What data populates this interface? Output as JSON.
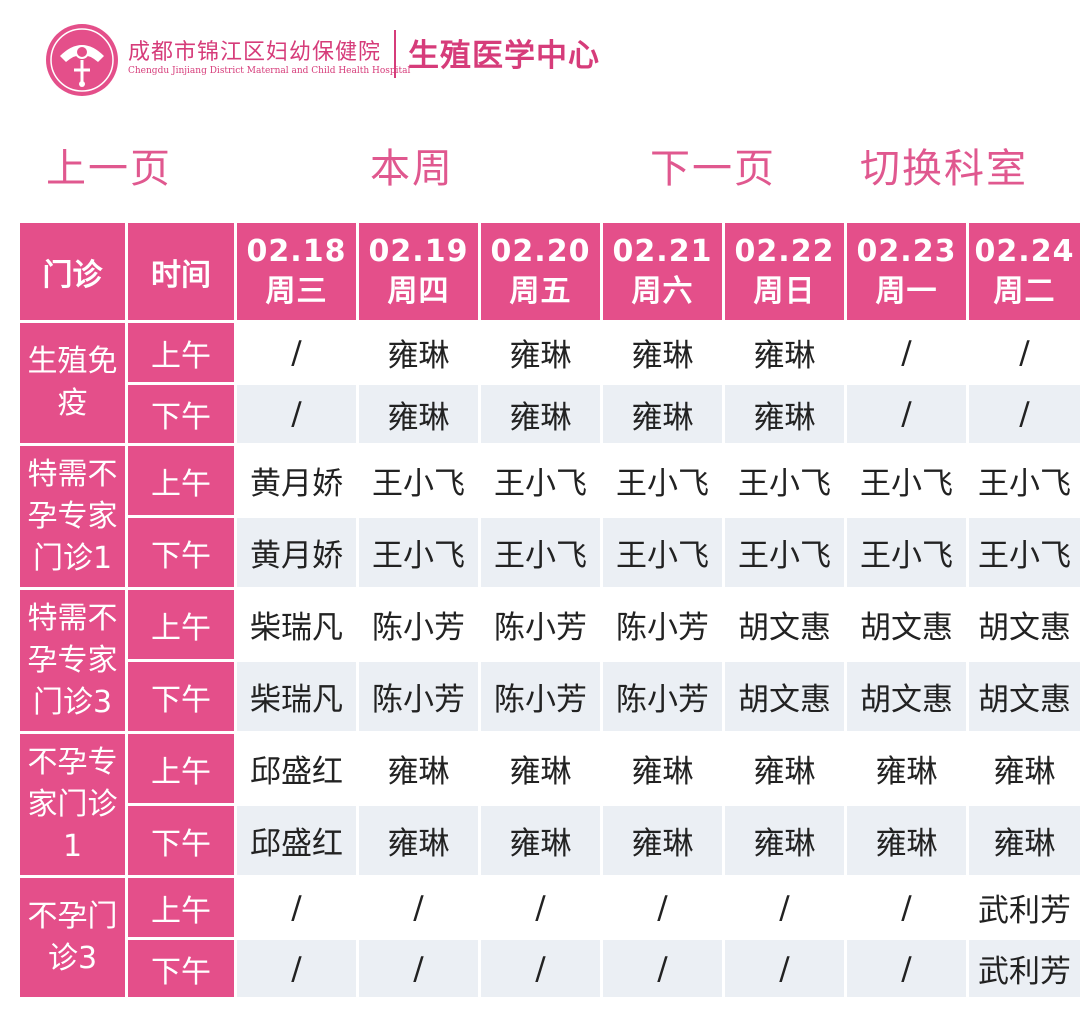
{
  "header": {
    "hospital_cn": "成都市锦江区妇幼保健院",
    "hospital_en": "Chengdu Jinjiang District Maternal and Child Health Hospital",
    "center": "生殖医学中心",
    "logo_icon": "hospital-logo-icon",
    "accent_color": "#e44f8a"
  },
  "nav": {
    "prev": "上一页",
    "week": "本周",
    "next": "下一页",
    "switch_dept": "切换科室"
  },
  "table": {
    "col_dept": "门诊",
    "col_time": "时间",
    "days": [
      {
        "date": "02.18",
        "weekday": "周三"
      },
      {
        "date": "02.19",
        "weekday": "周四"
      },
      {
        "date": "02.20",
        "weekday": "周五"
      },
      {
        "date": "02.21",
        "weekday": "周六"
      },
      {
        "date": "02.22",
        "weekday": "周日"
      },
      {
        "date": "02.23",
        "weekday": "周一"
      },
      {
        "date": "02.24",
        "weekday": "周二"
      }
    ],
    "departments": [
      {
        "name": "生殖免疫",
        "am_label": "上午",
        "pm_label": "下午",
        "am": [
          "/",
          "雍琳",
          "雍琳",
          "雍琳",
          "雍琳",
          "/",
          "/"
        ],
        "pm": [
          "/",
          "雍琳",
          "雍琳",
          "雍琳",
          "雍琳",
          "/",
          "/"
        ]
      },
      {
        "name": "特需不孕专家门诊1",
        "am_label": "上午",
        "pm_label": "下午",
        "am": [
          "黄月娇",
          "王小飞",
          "王小飞",
          "王小飞",
          "王小飞",
          "王小飞",
          "王小飞"
        ],
        "pm": [
          "黄月娇",
          "王小飞",
          "王小飞",
          "王小飞",
          "王小飞",
          "王小飞",
          "王小飞"
        ]
      },
      {
        "name": "特需不孕专家门诊3",
        "am_label": "上午",
        "pm_label": "下午",
        "am": [
          "柴瑞凡",
          "陈小芳",
          "陈小芳",
          "陈小芳",
          "胡文惠",
          "胡文惠",
          "胡文惠"
        ],
        "pm": [
          "柴瑞凡",
          "陈小芳",
          "陈小芳",
          "陈小芳",
          "胡文惠",
          "胡文惠",
          "胡文惠"
        ]
      },
      {
        "name": "不孕专家门诊1",
        "am_label": "上午",
        "pm_label": "下午",
        "am": [
          "邱盛红",
          "雍琳",
          "雍琳",
          "雍琳",
          "雍琳",
          "雍琳",
          "雍琳"
        ],
        "pm": [
          "邱盛红",
          "雍琳",
          "雍琳",
          "雍琳",
          "雍琳",
          "雍琳",
          "雍琳"
        ]
      },
      {
        "name": "不孕门诊3",
        "am_label": "上午",
        "pm_label": "下午",
        "am": [
          "/",
          "/",
          "/",
          "/",
          "/",
          "/",
          "武利芳"
        ],
        "pm": [
          "/",
          "/",
          "/",
          "/",
          "/",
          "/",
          "武利芳"
        ]
      }
    ]
  }
}
